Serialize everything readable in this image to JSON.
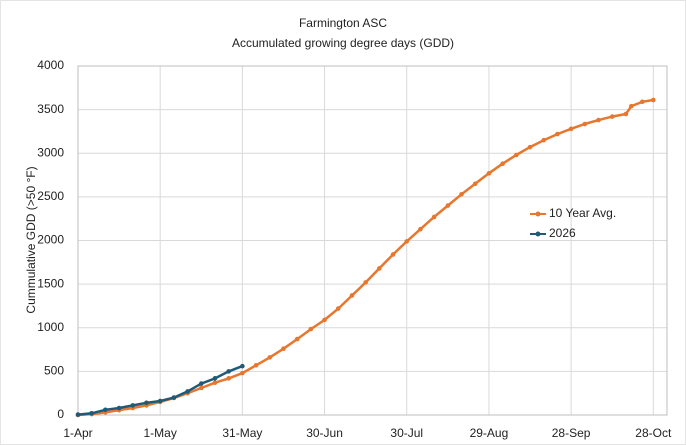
{
  "chart_data": {
    "type": "line",
    "title": "Farmington ASC",
    "subtitle": "Accumulated growing degree days (GDD)",
    "y_label": "Cummulative GDD  (>50  °F)",
    "x": [
      "1-Apr",
      "6-Apr",
      "11-Apr",
      "16-Apr",
      "21-Apr",
      "26-Apr",
      "1-May",
      "6-May",
      "11-May",
      "16-May",
      "21-May",
      "26-May",
      "31-May",
      "5-Jun",
      "10-Jun",
      "15-Jun",
      "20-Jun",
      "25-Jun",
      "30-Jun",
      "5-Jul",
      "10-Jul",
      "15-Jul",
      "20-Jul",
      "25-Jul",
      "30-Jul",
      "4-Aug",
      "9-Aug",
      "14-Aug",
      "19-Aug",
      "24-Aug",
      "29-Aug",
      "3-Sep",
      "8-Sep",
      "13-Sep",
      "18-Sep",
      "23-Sep",
      "28-Sep",
      "3-Oct",
      "8-Oct",
      "13-Oct",
      "18-Oct",
      "20-Oct",
      "24-Oct",
      "28-Oct"
    ],
    "series": [
      {
        "name": "10 Year Avg.",
        "color": "#e8762d",
        "values": [
          0,
          10,
          30,
          55,
          80,
          110,
          150,
          195,
          250,
          310,
          370,
          420,
          480,
          570,
          660,
          760,
          870,
          985,
          1090,
          1220,
          1370,
          1520,
          1680,
          1840,
          1990,
          2130,
          2270,
          2400,
          2530,
          2650,
          2770,
          2880,
          2980,
          3070,
          3150,
          3220,
          3280,
          3335,
          3380,
          3420,
          3450,
          3540,
          3590,
          3610
        ]
      },
      {
        "name": "2026",
        "color": "#1f5a78",
        "values": [
          5,
          20,
          60,
          80,
          110,
          140,
          160,
          200,
          270,
          360,
          420,
          500,
          560,
          null,
          null,
          null,
          null,
          null,
          null,
          null,
          null,
          null,
          null,
          null,
          null,
          null,
          null,
          null,
          null,
          null,
          null,
          null,
          null,
          null,
          null,
          null,
          null,
          null,
          null,
          null,
          null,
          null,
          null,
          null
        ]
      }
    ],
    "xlim": [
      "1-Apr",
      "2-Nov"
    ],
    "xticks": [
      "1-Apr",
      "1-May",
      "31-May",
      "30-Jun",
      "30-Jul",
      "29-Aug",
      "28-Sep",
      "28-Oct"
    ],
    "ylim": [
      0,
      4000
    ],
    "yticks": [
      0,
      500,
      1000,
      1500,
      2000,
      2500,
      3000,
      3500,
      4000
    ],
    "grid": true,
    "legend": "right"
  }
}
